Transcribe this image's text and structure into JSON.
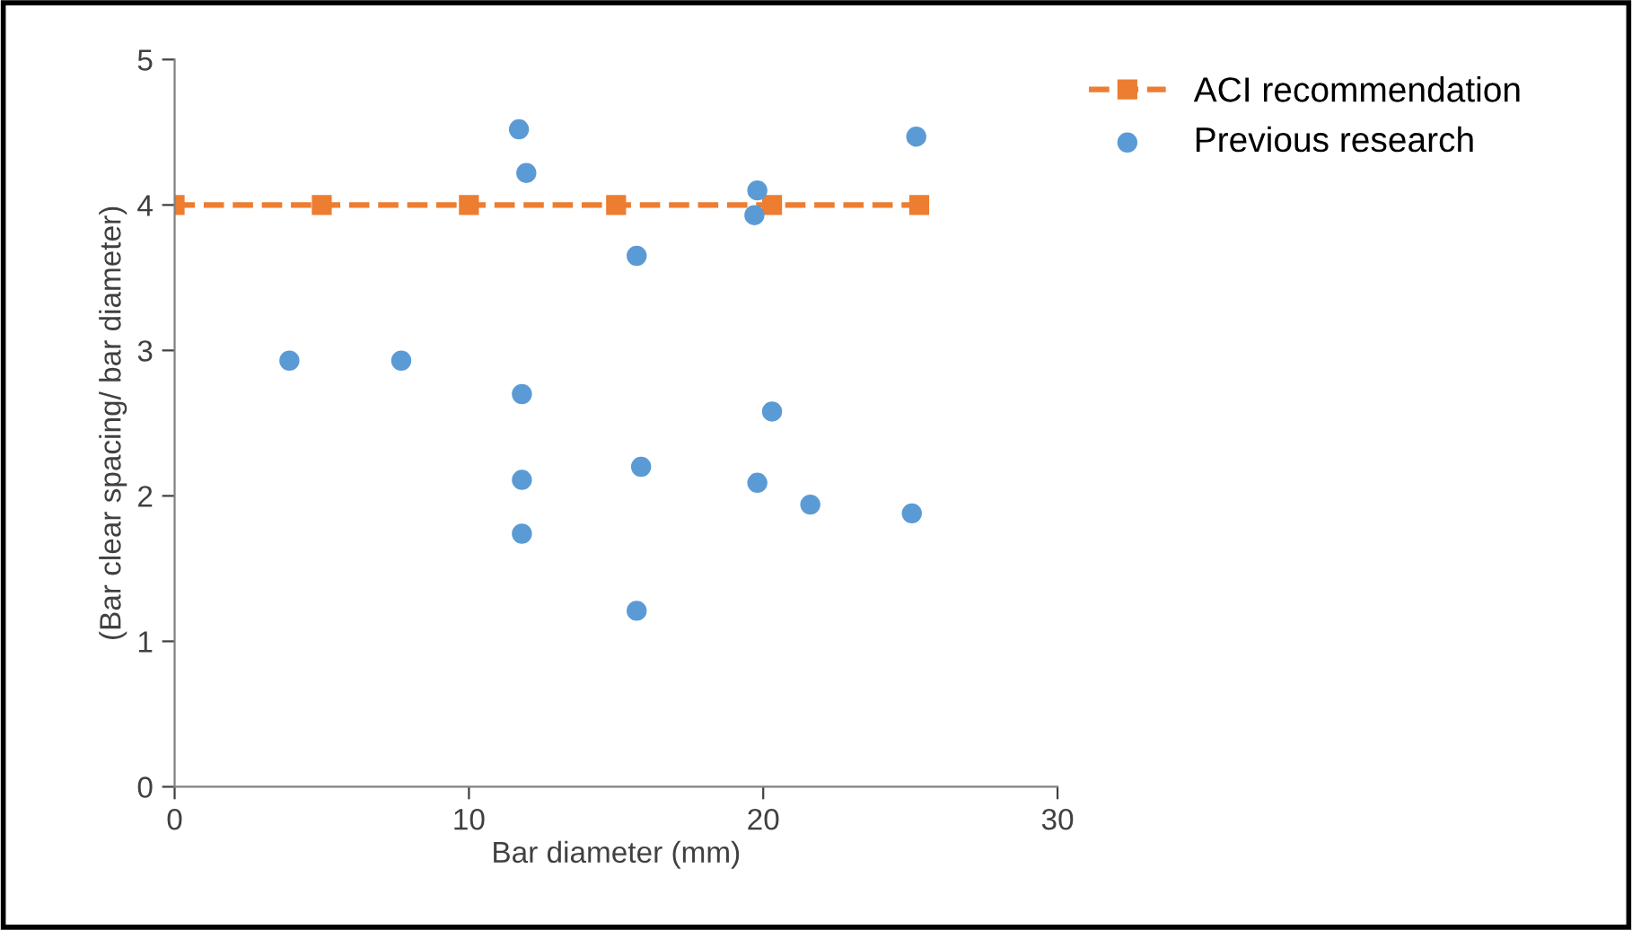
{
  "chart_data": {
    "type": "scatter",
    "xlabel": "Bar diameter (mm)",
    "ylabel": "(Bar clear spacing/ bar diameter)",
    "xlim": [
      0,
      30
    ],
    "xticks": [
      0,
      10,
      20,
      30
    ],
    "ylim": [
      0,
      5
    ],
    "yticks": [
      0,
      1,
      2,
      3,
      4,
      5
    ],
    "grid": false,
    "legend": "top right",
    "series": [
      {
        "name": "ACI recommendation",
        "type": "line",
        "color": "#ed7d31",
        "marker": "square",
        "line_style": "dashed",
        "x": [
          0,
          5,
          10,
          15,
          20.3,
          25.3
        ],
        "values": [
          4,
          4,
          4,
          4,
          4,
          4
        ]
      },
      {
        "name": "Previous research",
        "color": "#5b9bd5",
        "marker": "circle",
        "x": [
          3.9,
          7.7,
          11.7,
          11.95,
          11.8,
          11.8,
          11.8,
          15.7,
          15.85,
          15.7,
          19.8,
          19.7,
          20.3,
          19.8,
          21.6,
          25.2,
          25.05
        ],
        "values": [
          2.93,
          2.93,
          4.52,
          4.22,
          2.7,
          2.11,
          1.74,
          3.65,
          2.2,
          1.21,
          4.1,
          3.93,
          2.58,
          2.09,
          1.94,
          4.47,
          1.88
        ]
      }
    ]
  }
}
